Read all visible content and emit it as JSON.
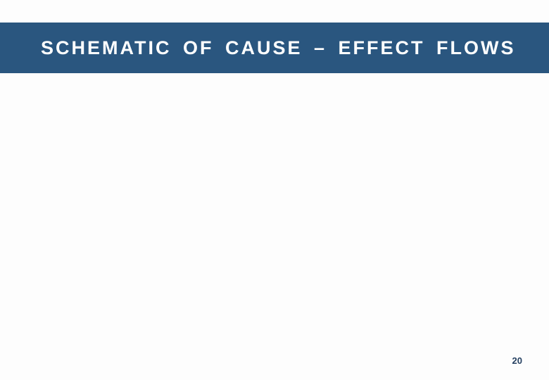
{
  "slide": {
    "title": "SCHEMATIC OF CAUSE – EFFECT FLOWS",
    "page_number": "20",
    "banner_color": "#2a567f",
    "banner_text_color": "#ffffff",
    "page_number_color": "#254061",
    "background_color": "#fdfdfd",
    "title_fontsize": 27,
    "title_letter_spacing": 3,
    "page_number_fontsize": 13
  }
}
